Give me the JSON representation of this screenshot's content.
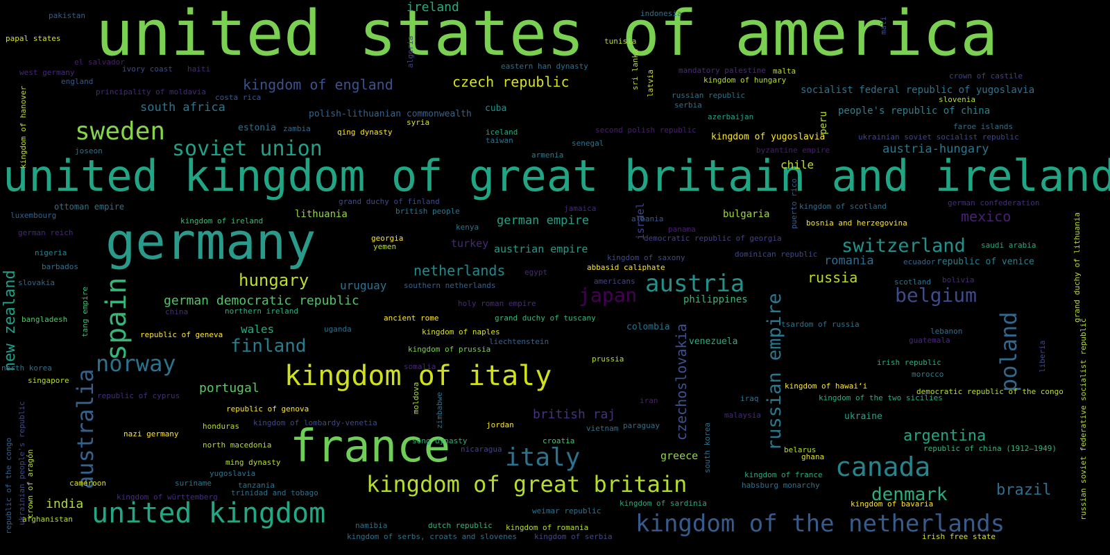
{
  "words": [
    {
      "text": "united states of america",
      "color": "#7ad151"
    },
    {
      "text": "united kingdom of great britain and ireland",
      "color": "#21a685"
    },
    {
      "text": "germany",
      "color": "#2a9b8a"
    },
    {
      "text": "france",
      "color": "#6ece58"
    },
    {
      "text": "kingdom of italy",
      "color": "#d0e11c"
    },
    {
      "text": "united kingdom",
      "color": "#22a884"
    },
    {
      "text": "kingdom of the netherlands",
      "color": "#365c8d"
    },
    {
      "text": "kingdom of great britain",
      "color": "#b5de2b"
    },
    {
      "text": "canada",
      "color": "#25858e"
    },
    {
      "text": "italy",
      "color": "#2c728e"
    },
    {
      "text": "austria",
      "color": "#21918c"
    },
    {
      "text": "sweden",
      "color": "#86d549"
    },
    {
      "text": "soviet union",
      "color": "#1fa187"
    },
    {
      "text": "norway",
      "color": "#2c728e"
    },
    {
      "text": "spain",
      "color": "#35b779"
    },
    {
      "text": "australia",
      "color": "#33638d"
    },
    {
      "text": "russian empire",
      "color": "#2a788e"
    },
    {
      "text": "poland",
      "color": "#31688e"
    },
    {
      "text": "japan",
      "color": "#440154"
    },
    {
      "text": "belgium",
      "color": "#3e4a89"
    },
    {
      "text": "switzerland",
      "color": "#20928c"
    },
    {
      "text": "netherlands",
      "color": "#238a8d"
    },
    {
      "text": "finland",
      "color": "#287c8e"
    },
    {
      "text": "hungary",
      "color": "#bddf26"
    },
    {
      "text": "denmark",
      "color": "#29af7f"
    },
    {
      "text": "argentina",
      "color": "#21a585"
    },
    {
      "text": "brazil",
      "color": "#2d708e"
    },
    {
      "text": "new zealand",
      "color": "#1fa088"
    },
    {
      "text": "czechoslovakia",
      "color": "#3b528b"
    },
    {
      "text": "german democratic republic",
      "color": "#52c569"
    },
    {
      "text": "kingdom of england",
      "color": "#3b528b"
    },
    {
      "text": "south africa",
      "color": "#2a788e"
    },
    {
      "text": "czech republic",
      "color": "#d8e219"
    },
    {
      "text": "portugal",
      "color": "#5ec962"
    },
    {
      "text": "british raj",
      "color": "#46327e"
    },
    {
      "text": "german empire",
      "color": "#20a386"
    },
    {
      "text": "austrian empire",
      "color": "#1f9e89"
    },
    {
      "text": "mexico",
      "color": "#482173"
    },
    {
      "text": "russia",
      "color": "#bade28"
    },
    {
      "text": "romania",
      "color": "#2f6c8e"
    },
    {
      "text": "india",
      "color": "#addc30"
    },
    {
      "text": "greece",
      "color": "#8fd744"
    },
    {
      "text": "chile",
      "color": "#c2df23"
    },
    {
      "text": "uruguay",
      "color": "#2d718e"
    },
    {
      "text": "turkey",
      "color": "#482878"
    },
    {
      "text": "wales",
      "color": "#26ad81"
    },
    {
      "text": "peru",
      "color": "#b5de2b"
    },
    {
      "text": "ireland",
      "color": "#27ad81"
    },
    {
      "text": "austria-hungary",
      "color": "#2a768e"
    },
    {
      "text": "people's republic of china",
      "color": "#25848e"
    },
    {
      "text": "socialist federal republic of yugoslavia",
      "color": "#2b758e"
    },
    {
      "text": "polish-lithuanian commonwealth",
      "color": "#33638d"
    },
    {
      "text": "ottoman empire",
      "color": "#2c728e"
    },
    {
      "text": "estonia",
      "color": "#2c728e"
    },
    {
      "text": "cuba",
      "color": "#21918c"
    },
    {
      "text": "lithuania",
      "color": "#8fd744"
    },
    {
      "text": "bulgaria",
      "color": "#9fda3a"
    },
    {
      "text": "israel",
      "color": "#414487"
    },
    {
      "text": "philippines",
      "color": "#35b779"
    },
    {
      "text": "colombia",
      "color": "#2c728e"
    },
    {
      "text": "venezuela",
      "color": "#26ad81"
    },
    {
      "text": "ukraine",
      "color": "#21a685"
    },
    {
      "text": "kingdom of yugoslavia",
      "color": "#fde725"
    },
    {
      "text": "republic of venice",
      "color": "#27808e"
    },
    {
      "text": "croatia",
      "color": "#46c06f"
    },
    {
      "text": "serbia",
      "color": "#2d708e"
    },
    {
      "text": "qing dynasty",
      "color": "#fde725"
    },
    {
      "text": "syria",
      "color": "#d8e219"
    },
    {
      "text": "iceland",
      "color": "#25ab82"
    },
    {
      "text": "taiwan",
      "color": "#2c728e"
    },
    {
      "text": "zambia",
      "color": "#31688e"
    },
    {
      "text": "joseon",
      "color": "#2c728e"
    },
    {
      "text": "armenia",
      "color": "#287d8e"
    },
    {
      "text": "senegal",
      "color": "#2c728e"
    },
    {
      "text": "luxembourg",
      "color": "#33638d"
    },
    {
      "text": "kingdom of ireland",
      "color": "#3bbb75"
    },
    {
      "text": "grand duchy of finland",
      "color": "#3e4a89"
    },
    {
      "text": "british people",
      "color": "#2a788e"
    },
    {
      "text": "kenya",
      "color": "#2c728e"
    },
    {
      "text": "jamaica",
      "color": "#482878"
    },
    {
      "text": "albania",
      "color": "#38598c"
    },
    {
      "text": "panama",
      "color": "#481f70"
    },
    {
      "text": "georgia",
      "color": "#fde725"
    },
    {
      "text": "yemen",
      "color": "#b5de2b"
    },
    {
      "text": "democratic republic of georgia",
      "color": "#414487"
    },
    {
      "text": "kingdom of saxony",
      "color": "#3e4a89"
    },
    {
      "text": "dominican republic",
      "color": "#3e4a89"
    },
    {
      "text": "abbasid caliphate",
      "color": "#fde725"
    },
    {
      "text": "egypt",
      "color": "#482878"
    },
    {
      "text": "americans",
      "color": "#414487"
    },
    {
      "text": "southern netherlands",
      "color": "#33638d"
    },
    {
      "text": "holy roman empire",
      "color": "#472d7b"
    },
    {
      "text": "scotland",
      "color": "#2c728e"
    },
    {
      "text": "bolivia",
      "color": "#482878"
    },
    {
      "text": "saudi arabia",
      "color": "#25ab82"
    },
    {
      "text": "ecuador",
      "color": "#31688e"
    },
    {
      "text": "grand duchy of lithuania",
      "color": "#b5de2b"
    },
    {
      "text": "russian soviet federative socialist republic",
      "color": "#b5de2b"
    },
    {
      "text": "kingdom of scotland",
      "color": "#2d708e"
    },
    {
      "text": "german confederation",
      "color": "#472d7b"
    },
    {
      "text": "bosnia and herzegovina",
      "color": "#fde725"
    },
    {
      "text": "puerto rico",
      "color": "#35608d"
    },
    {
      "text": "pakistan",
      "color": "#355f8d"
    },
    {
      "text": "papal states",
      "color": "#d8e219"
    },
    {
      "text": "el salvador",
      "color": "#481f70"
    },
    {
      "text": "ivory coast",
      "color": "#3e4a89"
    },
    {
      "text": "haiti",
      "color": "#482878"
    },
    {
      "text": "west germany",
      "color": "#482878"
    },
    {
      "text": "england",
      "color": "#38598c"
    },
    {
      "text": "principality of moldavia",
      "color": "#482878"
    },
    {
      "text": "costa rica",
      "color": "#38598c"
    },
    {
      "text": "kingdom of hanover",
      "color": "#c2df23"
    },
    {
      "text": "algeria",
      "color": "#414487"
    },
    {
      "text": "indonesia",
      "color": "#2c728e"
    },
    {
      "text": "tunisia",
      "color": "#b5de2b"
    },
    {
      "text": "mali",
      "color": "#3e4a89"
    },
    {
      "text": "eastern han dynasty",
      "color": "#2c728e"
    },
    {
      "text": "sri lanka",
      "color": "#b5de2b"
    },
    {
      "text": "latvia",
      "color": "#d8e219"
    },
    {
      "text": "mandatory palestine",
      "color": "#472d7b"
    },
    {
      "text": "malta",
      "color": "#b5de2b"
    },
    {
      "text": "crown of castile",
      "color": "#414487"
    },
    {
      "text": "kingdom of hungary",
      "color": "#b5de2b"
    },
    {
      "text": "russian republic",
      "color": "#2c728e"
    },
    {
      "text": "slovenia",
      "color": "#b5de2b"
    },
    {
      "text": "azerbaijan",
      "color": "#1fa187"
    },
    {
      "text": "faroe islands",
      "color": "#2c728e"
    },
    {
      "text": "second polish republic",
      "color": "#481f70"
    },
    {
      "text": "ukrainian soviet socialist republic",
      "color": "#3e4a89"
    },
    {
      "text": "byzantine empire",
      "color": "#481f70"
    },
    {
      "text": "german reich",
      "color": "#482878"
    },
    {
      "text": "nigeria",
      "color": "#25858e"
    },
    {
      "text": "barbados",
      "color": "#2c728e"
    },
    {
      "text": "slovakia",
      "color": "#31688e"
    },
    {
      "text": "bangladesh",
      "color": "#52c569"
    },
    {
      "text": "tang empire",
      "color": "#3bbb75"
    },
    {
      "text": "china",
      "color": "#472d7b"
    },
    {
      "text": "northern ireland",
      "color": "#2ab07f"
    },
    {
      "text": "ancient rome",
      "color": "#fde725"
    },
    {
      "text": "grand duchy of tuscany",
      "color": "#35b779"
    },
    {
      "text": "republic of geneva",
      "color": "#fde725"
    },
    {
      "text": "uganda",
      "color": "#2c728e"
    },
    {
      "text": "kingdom of naples",
      "color": "#d8e219"
    },
    {
      "text": "liechtenstein",
      "color": "#33638d"
    },
    {
      "text": "kingdom of prussia",
      "color": "#7ad151"
    },
    {
      "text": "prussia",
      "color": "#b5de2b"
    },
    {
      "text": "tsardom of russia",
      "color": "#2c728e"
    },
    {
      "text": "lebanon",
      "color": "#2c728e"
    },
    {
      "text": "guatemala",
      "color": "#482878"
    },
    {
      "text": "irish republic",
      "color": "#25ab82"
    },
    {
      "text": "morocco",
      "color": "#287d8e"
    },
    {
      "text": "liberia",
      "color": "#3e4a89"
    },
    {
      "text": "north korea",
      "color": "#2c728e"
    },
    {
      "text": "singapore",
      "color": "#b5de2b"
    },
    {
      "text": "republic of cyprus",
      "color": "#472d7b"
    },
    {
      "text": "somalia",
      "color": "#482878"
    },
    {
      "text": "moldova",
      "color": "#b5de2b"
    },
    {
      "text": "zimbabwe",
      "color": "#2c728e"
    },
    {
      "text": "iran",
      "color": "#481f70"
    },
    {
      "text": "kingdom of hawaiʻi",
      "color": "#fde725"
    },
    {
      "text": "iraq",
      "color": "#2c728e"
    },
    {
      "text": "kingdom of the two sicilies",
      "color": "#27ad81"
    },
    {
      "text": "democratic republic of the congo",
      "color": "#b5de2b"
    },
    {
      "text": "malaysia",
      "color": "#482878"
    },
    {
      "text": "republic of genova",
      "color": "#fde725"
    },
    {
      "text": "honduras",
      "color": "#b5de2b"
    },
    {
      "text": "kingdom of lombardy-venetia",
      "color": "#3e4a89"
    },
    {
      "text": "jordan",
      "color": "#fde725"
    },
    {
      "text": "paraguay",
      "color": "#2c728e"
    },
    {
      "text": "vietnam",
      "color": "#2c728e"
    },
    {
      "text": "nazi germany",
      "color": "#fde725"
    },
    {
      "text": "song dynasty",
      "color": "#29af7f"
    },
    {
      "text": "north macedonia",
      "color": "#b5de2b"
    },
    {
      "text": "nicaragua",
      "color": "#414487"
    },
    {
      "text": "belarus",
      "color": "#b5de2b"
    },
    {
      "text": "ghana",
      "color": "#d8e219"
    },
    {
      "text": "republic of china (1912–1949)",
      "color": "#35b779"
    },
    {
      "text": "ming dynasty",
      "color": "#b5de2b"
    },
    {
      "text": "yugoslavia",
      "color": "#2c728e"
    },
    {
      "text": "cameroon",
      "color": "#d8e219"
    },
    {
      "text": "suriname",
      "color": "#2c728e"
    },
    {
      "text": "tanzania",
      "color": "#2c728e"
    },
    {
      "text": "trinidad and tobago",
      "color": "#2c728e"
    },
    {
      "text": "kingdom of württemberg",
      "color": "#472d7b"
    },
    {
      "text": "south korea",
      "color": "#2c728e"
    },
    {
      "text": "kingdom of france",
      "color": "#25ab82"
    },
    {
      "text": "habsburg monarchy",
      "color": "#2c728e"
    },
    {
      "text": "kingdom of sardinia",
      "color": "#25ab82"
    },
    {
      "text": "kingdom of bavaria",
      "color": "#fde725"
    },
    {
      "text": "republic of the congo",
      "color": "#355f8d"
    },
    {
      "text": "ukrainian people's republic",
      "color": "#3e4a89"
    },
    {
      "text": "crown of aragón",
      "color": "#b5de2b"
    },
    {
      "text": "afghanistan",
      "color": "#b5de2b"
    },
    {
      "text": "namibia",
      "color": "#2c728e"
    },
    {
      "text": "dutch republic",
      "color": "#35b779"
    },
    {
      "text": "kingdom of romania",
      "color": "#b5de2b"
    },
    {
      "text": "weimar republic",
      "color": "#2c728e"
    },
    {
      "text": "kingdom of serbs, croats and slovenes",
      "color": "#2c728e"
    },
    {
      "text": "kingdom of serbia",
      "color": "#3e4a89"
    },
    {
      "text": "irish free state",
      "color": "#d8e219"
    }
  ]
}
